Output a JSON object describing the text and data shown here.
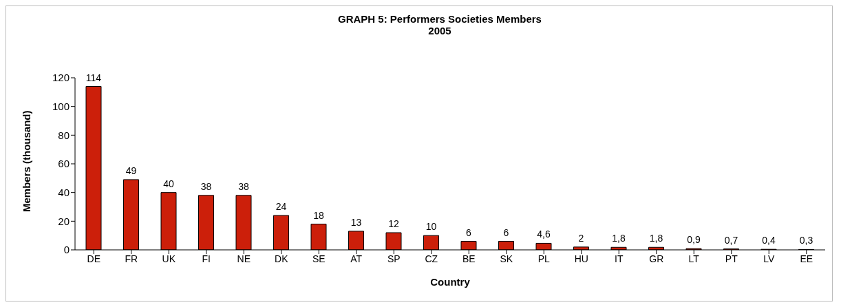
{
  "chart_data": {
    "type": "bar",
    "title": "GRAPH 5: Performers Societies Members",
    "subtitle": "2005",
    "xlabel": "Country",
    "ylabel": "Members (thousand)",
    "categories": [
      "DE",
      "FR",
      "UK",
      "FI",
      "NE",
      "DK",
      "SE",
      "AT",
      "SP",
      "CZ",
      "BE",
      "SK",
      "PL",
      "HU",
      "IT",
      "GR",
      "LT",
      "PT",
      "LV",
      "EE"
    ],
    "values": [
      114,
      49,
      40,
      38,
      38,
      24,
      18,
      13,
      12,
      10,
      6,
      6,
      4.6,
      2,
      1.8,
      1.8,
      0.9,
      0.7,
      0.4,
      0.3
    ],
    "value_labels": [
      "114",
      "49",
      "40",
      "38",
      "38",
      "24",
      "18",
      "13",
      "12",
      "10",
      "6",
      "6",
      "4,6",
      "2",
      "1,8",
      "1,8",
      "0,9",
      "0,7",
      "0,4",
      "0,3"
    ],
    "color": "#cc1f0a",
    "ylim": [
      0,
      120
    ],
    "yticks": [
      0,
      20,
      40,
      60,
      80,
      100,
      120
    ],
    "grid": false,
    "legend": false
  }
}
